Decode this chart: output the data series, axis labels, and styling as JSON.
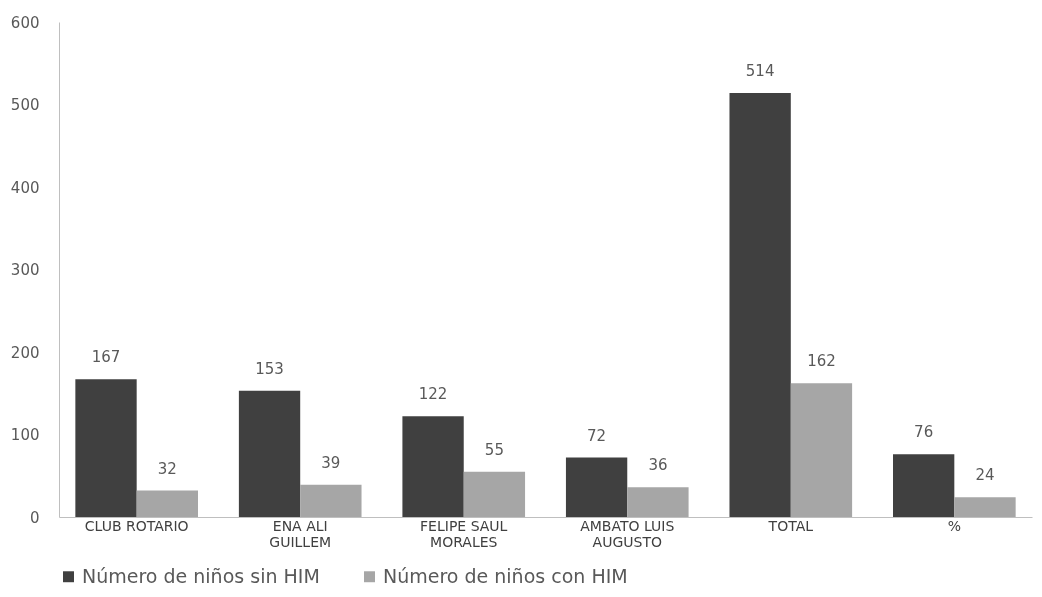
{
  "chart_data": {
    "type": "bar",
    "categories": [
      "CLUB ROTARIO",
      "ENA ALI GUILLEM",
      "FELIPE SAUL MORALES",
      "AMBATO LUIS AUGUSTO",
      "TOTAL",
      "%"
    ],
    "series": [
      {
        "name": "Número de niños sin HIM",
        "color": "#404040",
        "values": [
          167,
          153,
          122,
          72,
          514,
          76
        ]
      },
      {
        "name": "Número de niños con HIM",
        "color": "#a6a6a6",
        "values": [
          32,
          39,
          55,
          36,
          162,
          24
        ]
      }
    ],
    "ylim": [
      0,
      600
    ],
    "yticks": [
      0,
      100,
      200,
      300,
      400,
      500,
      600
    ],
    "grid": false,
    "legend": "bottom",
    "data_labels": true
  }
}
